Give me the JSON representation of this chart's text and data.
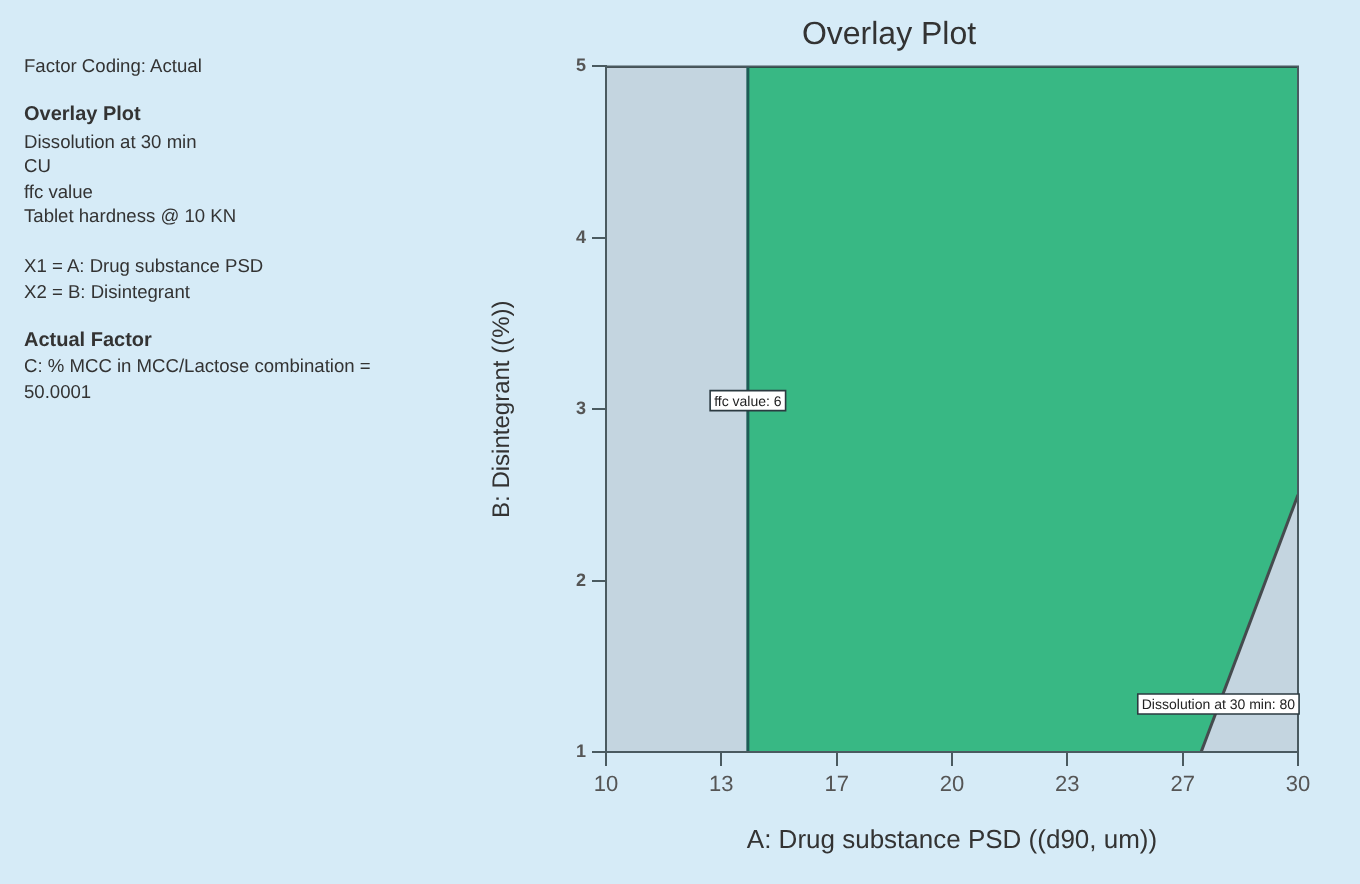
{
  "chart_data": {
    "type": "area",
    "title": "Overlay Plot",
    "xlabel": "A: Drug substance PSD ((d90, um))",
    "ylabel": "B: Disintegrant ((%))",
    "annotations": [
      "Factor Coding: Actual",
      "Overlay Plot",
      "Dissolution at 30 min",
      "CU",
      "ffc value",
      "Tablet hardness @ 10 KN",
      "X1 = A: Drug substance PSD",
      "X2 = B: Disintegrant",
      "Actual Factor",
      "C: % MCC in MCC/Lactose combination = 50.0001",
      {
        "text": "ffc value: 6",
        "x": 14.1,
        "y": 3.05
      },
      {
        "text": "Dissolution at 30 min: 80",
        "x": 27.7,
        "y": 1.28
      }
    ],
    "series": [
      {
        "type": "area",
        "color": "#c4d5e0",
        "x": [
          10,
          14.1
        ],
        "values": [
          5,
          5
        ]
      },
      {
        "type": "area",
        "color": "#38b884",
        "x": [
          14.1,
          30
        ],
        "values": [
          5,
          5
        ]
      },
      {
        "type": "area",
        "color": "#c4d5e0",
        "x": [
          27.2,
          30
        ],
        "values": [
          1,
          2.5
        ]
      },
      {
        "type": "line",
        "color": "#1d5c55",
        "x": [
          14.1,
          14.1
        ],
        "values": [
          1,
          5
        ]
      }
    ],
    "xlim": [
      10,
      30
    ],
    "xticks": [
      10,
      {
        "value": 13.333,
        "label": "13"
      },
      {
        "value": 16.667,
        "label": "17"
      },
      20,
      {
        "value": 23.333,
        "label": "23"
      },
      {
        "value": 26.667,
        "label": "27"
      },
      30
    ],
    "ylim": [
      1,
      5
    ],
    "yticks": [
      1,
      2,
      3,
      4,
      5
    ]
  }
}
